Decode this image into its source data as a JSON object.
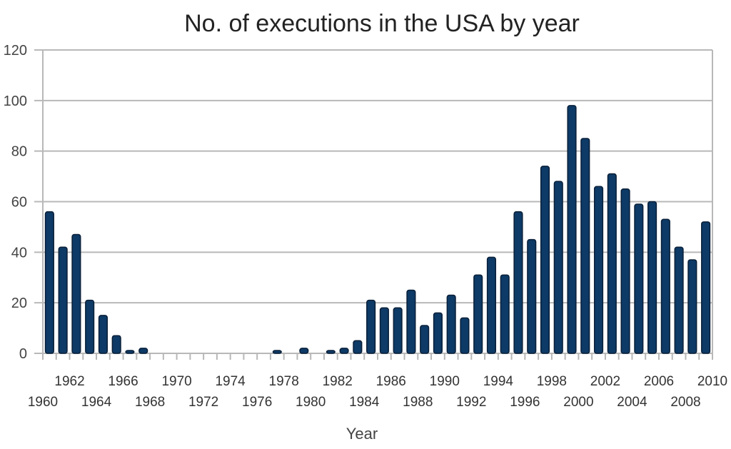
{
  "chart_data": {
    "type": "bar",
    "title": "No. of executions in the USA by year",
    "xlabel": "Year",
    "ylabel": "",
    "ylim": [
      0,
      120
    ],
    "yticks": [
      0,
      20,
      40,
      60,
      80,
      100,
      120
    ],
    "grid": true,
    "legend": "none",
    "bar_color": "#0d3a66",
    "x_tick_labels_upper": [
      "1962",
      "1966",
      "1970",
      "1974",
      "1978",
      "1982",
      "1986",
      "1990",
      "1994",
      "1998",
      "2002",
      "2006",
      "2010"
    ],
    "x_tick_labels_lower": [
      "1960",
      "1964",
      "1968",
      "1972",
      "1976",
      "1980",
      "1984",
      "1988",
      "1992",
      "1996",
      "2000",
      "2004",
      "2008"
    ],
    "categories": [
      "1960",
      "1961",
      "1962",
      "1963",
      "1964",
      "1965",
      "1966",
      "1967",
      "1968",
      "1969",
      "1970",
      "1971",
      "1972",
      "1973",
      "1974",
      "1975",
      "1976",
      "1977",
      "1978",
      "1979",
      "1980",
      "1981",
      "1982",
      "1983",
      "1984",
      "1985",
      "1986",
      "1987",
      "1988",
      "1989",
      "1990",
      "1991",
      "1992",
      "1993",
      "1994",
      "1995",
      "1996",
      "1997",
      "1998",
      "1999",
      "2000",
      "2001",
      "2002",
      "2003",
      "2004",
      "2005",
      "2006",
      "2007",
      "2008",
      "2009"
    ],
    "values": [
      56,
      42,
      47,
      21,
      15,
      7,
      1,
      2,
      0,
      0,
      0,
      0,
      0,
      0,
      0,
      0,
      0,
      1,
      0,
      2,
      0,
      1,
      2,
      5,
      21,
      18,
      18,
      25,
      11,
      16,
      23,
      14,
      31,
      38,
      31,
      56,
      45,
      74,
      68,
      98,
      85,
      66,
      71,
      65,
      59,
      60,
      53,
      42,
      37,
      52
    ]
  }
}
